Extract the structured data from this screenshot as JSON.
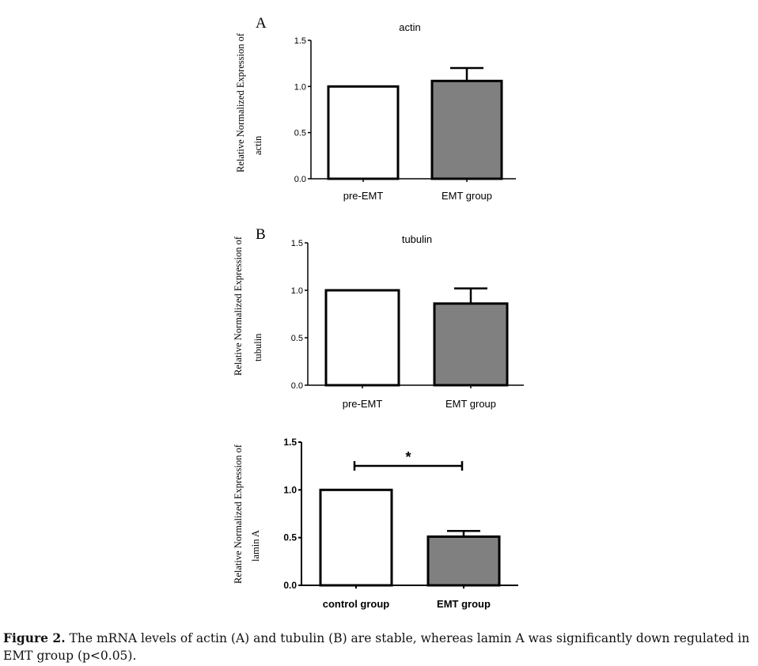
{
  "chart_data": [
    {
      "type": "bar",
      "panel_label": "A",
      "title": "actin",
      "ylabel_line1": "Relative Normalized Expression of",
      "ylabel_line2": "actin",
      "categories": [
        "pre-EMT",
        "EMT group"
      ],
      "values": [
        1.0,
        1.06
      ],
      "errors": [
        0,
        0.14
      ],
      "ylim": [
        0,
        1.5
      ],
      "yticks": [
        "0.0",
        "0.5",
        "1.0",
        "1.5"
      ],
      "bar_colors": [
        "#ffffff",
        "#808080"
      ]
    },
    {
      "type": "bar",
      "panel_label": "B",
      "title": "tubulin",
      "ylabel_line1": "Relative Normalized Expression of",
      "ylabel_line2": "tubulin",
      "categories": [
        "pre-EMT",
        "EMT group"
      ],
      "values": [
        1.0,
        0.86
      ],
      "errors": [
        0,
        0.16
      ],
      "ylim": [
        0,
        1.5
      ],
      "yticks": [
        "0.0",
        "0.5",
        "1.0",
        "1.5"
      ],
      "bar_colors": [
        "#ffffff",
        "#808080"
      ]
    },
    {
      "type": "bar",
      "panel_label": "",
      "title": "",
      "ylabel_line1": "Relative Normalized Expression of",
      "ylabel_line2": "lamin A",
      "categories": [
        "control group",
        "EMT group"
      ],
      "values": [
        1.0,
        0.51
      ],
      "errors": [
        0,
        0.06
      ],
      "ylim": [
        0,
        1.5
      ],
      "yticks": [
        "0.0",
        "0.5",
        "1.0",
        "1.5"
      ],
      "bar_colors": [
        "#ffffff",
        "#808080"
      ],
      "significance": "*"
    }
  ],
  "caption": {
    "label": "Figure 2.",
    "text": " The mRNA levels of actin (A) and tubulin (B) are stable, whereas lamin A was significantly down regulated in EMT group (p<0.05)."
  }
}
